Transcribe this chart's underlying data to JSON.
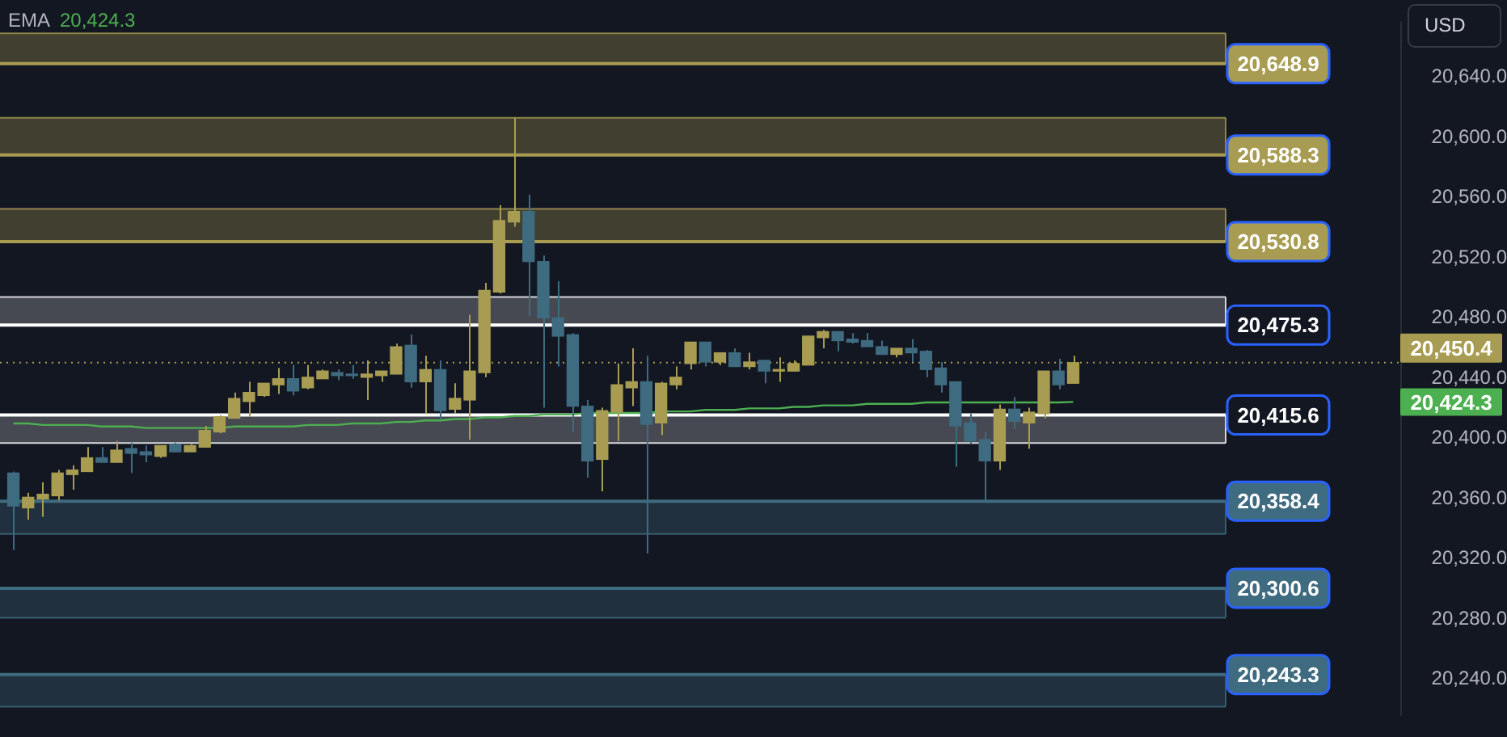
{
  "chart_data": {
    "type": "candlestick",
    "tick_labels": "y",
    "categories": [
      null,
      null,
      null,
      null,
      null,
      null,
      null,
      null,
      null,
      null,
      null,
      null,
      null,
      null,
      null,
      null,
      null,
      null,
      null,
      null,
      null,
      null,
      null,
      null,
      null,
      null,
      null,
      null,
      null,
      null,
      null,
      null,
      null,
      null,
      null,
      null,
      null,
      null,
      null,
      null,
      null,
      null,
      null,
      null,
      null,
      null,
      null,
      null,
      null,
      null,
      null,
      null,
      null,
      null,
      null,
      null,
      null,
      null,
      null,
      null,
      null,
      null,
      null,
      null,
      null,
      null,
      null,
      null,
      null,
      null,
      null,
      null,
      null
    ],
    "ohlc": [
      [
        20377.1,
        20378.1,
        20325.9,
        20355.2
      ],
      [
        20354.0,
        20364.0,
        20346.1,
        20361.0
      ],
      [
        20359.9,
        20371.0,
        20348.1,
        20363.0
      ],
      [
        20362.0,
        20379.1,
        20358.9,
        20377.1
      ],
      [
        20376.1,
        20382.2,
        20366.0,
        20379.1
      ],
      [
        20378.1,
        20394.3,
        20378.1,
        20387.2
      ],
      [
        20387.2,
        20394.3,
        20384.2,
        20384.2
      ],
      [
        20384.2,
        20398.3,
        20384.2,
        20392.3
      ],
      [
        20393.3,
        20397.3,
        20377.1,
        20390.2
      ],
      [
        20391.2,
        20395.3,
        20384.2,
        20389.2
      ],
      [
        20388.2,
        20395.3,
        20387.2,
        20395.3
      ],
      [
        20396.3,
        20397.3,
        20391.2,
        20391.2
      ],
      [
        20391.2,
        20396.3,
        20391.2,
        20395.3
      ],
      [
        20394.3,
        20408.4,
        20394.3,
        20405.4
      ],
      [
        20404.4,
        20415.5,
        20403.4,
        20414.5
      ],
      [
        20413.5,
        20430.6,
        20413.5,
        20426.6
      ],
      [
        20424.6,
        20437.7,
        20414.5,
        20430.6
      ],
      [
        20428.6,
        20436.7,
        20427.6,
        20436.7
      ],
      [
        20435.7,
        20446.8,
        20429.6,
        20439.7
      ],
      [
        20439.7,
        20448.8,
        20428.6,
        20431.6
      ],
      [
        20433.7,
        20448.8,
        20432.7,
        20440.7
      ],
      [
        20439.7,
        20445.8,
        20439.7,
        20444.8
      ],
      [
        20443.8,
        20445.8,
        20438.7,
        20441.8
      ],
      [
        20442.8,
        20448.8,
        20439.7,
        20441.8
      ],
      [
        20440.7,
        20451.9,
        20425.6,
        20442.8
      ],
      [
        20441.8,
        20444.8,
        20437.7,
        20444.8
      ],
      [
        20442.8,
        20463.0,
        20442.8,
        20460.9
      ],
      [
        20461.9,
        20469.0,
        20433.7,
        20437.7
      ],
      [
        20437.7,
        20454.9,
        20416.5,
        20445.8
      ],
      [
        20445.8,
        20451.9,
        20412.5,
        20418.5
      ],
      [
        20419.5,
        20436.7,
        20416.5,
        20426.6
      ],
      [
        20425.6,
        20482.2,
        20399.3,
        20444.8
      ],
      [
        20443.8,
        20503.4,
        20440.7,
        20498.3
      ],
      [
        20497.3,
        20554.9,
        20496.3,
        20544.8
      ],
      [
        20543.8,
        20613.1,
        20540.7,
        20550.8
      ],
      [
        20550.8,
        20562.0,
        20481.1,
        20517.5
      ],
      [
        20517.5,
        20521.5,
        20420.5,
        20480.1
      ],
      [
        20480.1,
        20504.4,
        20447.8,
        20468.0
      ],
      [
        20469.0,
        20470.0,
        20404.4,
        20421.5
      ],
      [
        20421.5,
        20425.6,
        20374.1,
        20385.2
      ],
      [
        20386.2,
        20420.5,
        20365.0,
        20418.5
      ],
      [
        20417.5,
        20449.8,
        20398.3,
        20435.7
      ],
      [
        20433.7,
        20459.9,
        20421.5,
        20437.7
      ],
      [
        20437.7,
        20454.9,
        20323.6,
        20409.4
      ],
      [
        20410.4,
        20437.7,
        20402.4,
        20436.7
      ],
      [
        20435.7,
        20447.8,
        20432.7,
        20440.7
      ],
      [
        20449.8,
        20464.0,
        20445.8,
        20464.0
      ],
      [
        20464.0,
        20464.0,
        20447.8,
        20450.8
      ],
      [
        20450.8,
        20456.9,
        20448.8,
        20456.9
      ],
      [
        20456.9,
        20459.9,
        20447.8,
        20447.8
      ],
      [
        20447.8,
        20456.9,
        20445.8,
        20450.8
      ],
      [
        20451.9,
        20451.9,
        20436.7,
        20444.8
      ],
      [
        20444.8,
        20453.9,
        20437.7,
        20445.8
      ],
      [
        20444.8,
        20451.9,
        20444.8,
        20449.8
      ],
      [
        20448.8,
        20468.0,
        20448.8,
        20468.0
      ],
      [
        20467.0,
        20472.1,
        20459.9,
        20471.0
      ],
      [
        20471.0,
        20471.0,
        20457.9,
        20465.0
      ],
      [
        20466.0,
        20470.0,
        20463.0,
        20464.0
      ],
      [
        20465.0,
        20470.0,
        20461.0,
        20461.0
      ],
      [
        20461.0,
        20465.0,
        20455.9,
        20455.9
      ],
      [
        20455.9,
        20459.9,
        20453.9,
        20459.9
      ],
      [
        20459.9,
        20466.0,
        20450.8,
        20456.9
      ],
      [
        20457.9,
        20458.9,
        20440.7,
        20445.8
      ],
      [
        20446.8,
        20450.8,
        20430.6,
        20435.7
      ],
      [
        20437.7,
        20437.7,
        20381.2,
        20408.4
      ],
      [
        20410.4,
        20416.5,
        20396.3,
        20398.3
      ],
      [
        20399.3,
        20404.4,
        20358.9,
        20385.2
      ],
      [
        20385.2,
        20422.6,
        20379.1,
        20419.5
      ],
      [
        20419.5,
        20427.6,
        20406.4,
        20411.5
      ],
      [
        20410.4,
        20420.5,
        20393.3,
        20417.5
      ],
      [
        20416.5,
        20444.8,
        20413.5,
        20444.8
      ],
      [
        20444.8,
        20452.9,
        20432.7,
        20435.7
      ],
      [
        20436.7,
        20454.9,
        20436.7,
        20450.4
      ]
    ],
    "colors": [
      "#3f6b80",
      "#a89c52",
      "#a89c52",
      "#a89c52",
      "#a89c52",
      "#a89c52",
      "#3f6b80",
      "#a89c52",
      "#3f6b80",
      "#3f6b80",
      "#a89c52",
      "#3f6b80",
      "#a89c52",
      "#a89c52",
      "#a89c52",
      "#a89c52",
      "#a89c52",
      "#a89c52",
      "#a89c52",
      "#3f6b80",
      "#a89c52",
      "#a89c52",
      "#3f6b80",
      "#3f6b80",
      "#a89c52",
      "#a89c52",
      "#a89c52",
      "#3f6b80",
      "#a89c52",
      "#3f6b80",
      "#a89c52",
      "#a89c52",
      "#a89c52",
      "#a89c52",
      "#a89c52",
      "#3f6b80",
      "#3f6b80",
      "#3f6b80",
      "#3f6b80",
      "#3f6b80",
      "#a89c52",
      "#a89c52",
      "#a89c52",
      "#3f6b80",
      "#a89c52",
      "#a89c52",
      "#a89c52",
      "#3f6b80",
      "#a89c52",
      "#3f6b80",
      "#a89c52",
      "#3f6b80",
      "#a89c52",
      "#a89c52",
      "#a89c52",
      "#a89c52",
      "#3f6b80",
      "#3f6b80",
      "#3f6b80",
      "#3f6b80",
      "#a89c52",
      "#3f6b80",
      "#3f6b80",
      "#3f6b80",
      "#3f6b80",
      "#3f6b80",
      "#3f6b80",
      "#a89c52",
      "#3f6b80",
      "#a89c52",
      "#a89c52",
      "#3f6b80",
      "#a89c52"
    ],
    "series": [
      {
        "type": "line",
        "color": "#4caf50",
        "values": [
          20410,
          20410,
          20409,
          20409,
          20409,
          20409,
          20408,
          20408,
          20408,
          20407,
          20407,
          20407,
          20407,
          20407,
          20407,
          20408,
          20408,
          20408,
          20408,
          20408,
          20409,
          20409,
          20409,
          20410,
          20410,
          20410,
          20411,
          20411,
          20412,
          20412,
          20413,
          20413,
          20414,
          20414,
          20415,
          20415,
          20416,
          20416,
          20416,
          20417,
          20417,
          20417,
          20417,
          20417,
          20418,
          20418,
          20418,
          20419,
          20419,
          20419,
          20420,
          20420,
          20420,
          20421,
          20421,
          20422,
          20422,
          20422,
          20423,
          20423,
          20423,
          20423,
          20424,
          20424,
          20424,
          20424,
          20424,
          20424,
          20424,
          20424,
          20424,
          20424,
          20424.3
        ]
      }
    ],
    "ylim": [
      20216,
      20677
    ],
    "yticks": [
      {
        "value": 20240,
        "label": "20,240.0"
      },
      {
        "value": 20280,
        "label": "20,280.0"
      },
      {
        "value": 20320,
        "label": "20,320.0"
      },
      {
        "value": 20360,
        "label": "20,360.0"
      },
      {
        "value": 20400,
        "label": "20,400.0"
      },
      {
        "value": 20440,
        "label": "20,440.0"
      },
      {
        "value": 20480,
        "label": "20,480.0"
      },
      {
        "value": 20520,
        "label": "20,520.0"
      },
      {
        "value": 20560,
        "label": "20,560.0"
      },
      {
        "value": 20600,
        "label": "20,600.0"
      },
      {
        "value": 20640,
        "label": "20,640.0"
      }
    ],
    "bands": [
      {
        "axis": "y",
        "from": 20648.9,
        "to": 20669,
        "color": "#a89c52"
      },
      {
        "axis": "y",
        "from": 20588.3,
        "to": 20613,
        "color": "#a89c52"
      },
      {
        "axis": "y",
        "from": 20530.8,
        "to": 20552.5,
        "color": "#a89c52"
      },
      {
        "axis": "y",
        "from": 20475.3,
        "to": 20494,
        "color": "#ffffff"
      },
      {
        "axis": "y",
        "from": 20415.6,
        "to": 20397,
        "color": "#ffffff"
      },
      {
        "axis": "y",
        "from": 20358.4,
        "to": 20336.6,
        "color": "#3f6b80"
      },
      {
        "axis": "y",
        "from": 20300.6,
        "to": 20281,
        "color": "#3f6b80"
      },
      {
        "axis": "y",
        "from": 20243.3,
        "to": 20222,
        "color": "#3f6b80"
      }
    ],
    "ref_lines": [
      {
        "axis": "y",
        "value": 20450.4,
        "label": "20,450.4",
        "color": "#a89c52",
        "line_style": "dotted"
      },
      {
        "axis": "y",
        "value": 20648.9,
        "label": "20,648.9",
        "color": "#a89c52"
      },
      {
        "axis": "y",
        "value": 20669,
        "color": "#a89c52"
      },
      {
        "axis": "y",
        "value": 20588.3,
        "label": "20,588.3",
        "color": "#a89c52"
      },
      {
        "axis": "y",
        "value": 20613,
        "color": "#a89c52"
      },
      {
        "axis": "y",
        "value": 20530.8,
        "label": "20,530.8",
        "color": "#a89c52"
      },
      {
        "axis": "y",
        "value": 20552.5,
        "color": "#a89c52"
      },
      {
        "axis": "y",
        "value": 20475.3,
        "label": "20,475.3",
        "color": "#ffffff"
      },
      {
        "axis": "y",
        "value": 20494,
        "color": "#ffffff"
      },
      {
        "axis": "y",
        "value": 20415.6,
        "label": "20,415.6",
        "color": "#ffffff"
      },
      {
        "axis": "y",
        "value": 20397,
        "color": "#ffffff"
      },
      {
        "axis": "y",
        "value": 20358.4,
        "label": "20,358.4",
        "color": "#3f6b80"
      },
      {
        "axis": "y",
        "value": 20336.6,
        "color": "#3f6b80"
      },
      {
        "axis": "y",
        "value": 20300.6,
        "label": "20,300.6",
        "color": "#3f6b80"
      },
      {
        "axis": "y",
        "value": 20281,
        "color": "#3f6b80"
      },
      {
        "axis": "y",
        "value": 20243.3,
        "label": "20,243.3",
        "color": "#3f6b80"
      },
      {
        "axis": "y",
        "value": 20222,
        "color": "#3f6b80"
      }
    ],
    "annotations": [
      "USD",
      "EMA",
      "20,424.3",
      "20,424.3"
    ]
  }
}
